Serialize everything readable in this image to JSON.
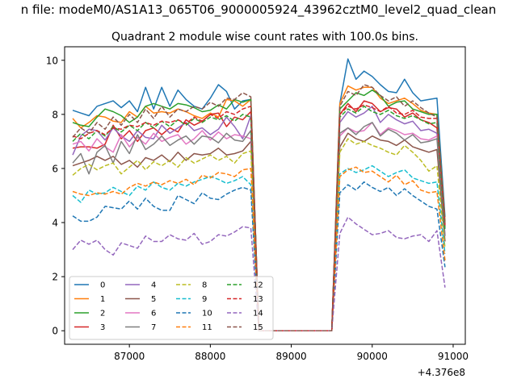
{
  "suptitle": "n file: modeM0/AS1A13_065T06_9000005924_43962cztM0_level2_quad_clean",
  "chart_data": {
    "type": "line",
    "title": "Quadrant 2 module wise count rates with 100.0s bins.",
    "xlabel": "",
    "ylabel": "",
    "x_offset_label": "+4.376e8",
    "xlim": [
      86200,
      91150
    ],
    "ylim": [
      -0.5,
      10.5
    ],
    "xticks": [
      87000,
      88000,
      89000,
      90000,
      91000
    ],
    "xtick_labels": [
      "87000",
      "88000",
      "89000",
      "90000",
      "91000"
    ],
    "yticks": [
      0,
      2,
      4,
      6,
      8,
      10
    ],
    "ytick_labels": [
      "0",
      "2",
      "4",
      "6",
      "8",
      "10"
    ],
    "grid": false,
    "legend": {
      "location": "lower left",
      "columns": 4
    },
    "x": [
      86300,
      86400,
      86500,
      86600,
      86700,
      86800,
      86900,
      87000,
      87100,
      87200,
      87300,
      87400,
      87500,
      87600,
      87700,
      87800,
      87900,
      88000,
      88100,
      88200,
      88300,
      88400,
      88500,
      88600,
      88700,
      88800,
      88900,
      89000,
      89100,
      89200,
      89300,
      89400,
      89500,
      89600,
      89700,
      89800,
      89900,
      90000,
      90100,
      90200,
      90300,
      90400,
      90500,
      90600,
      90700,
      90800,
      90900
    ],
    "series": [
      {
        "name": "0",
        "color": "#1f77b4",
        "dash": "solid",
        "values": [
          8.15,
          8.05,
          7.95,
          8.3,
          8.4,
          8.5,
          8.25,
          8.5,
          8.1,
          9.0,
          8.2,
          9.0,
          8.3,
          8.9,
          8.55,
          8.3,
          8.2,
          8.6,
          9.1,
          8.85,
          8.2,
          8.5,
          8.55,
          0,
          0,
          0,
          0,
          0,
          0,
          0,
          0,
          0,
          0,
          8.4,
          10.05,
          9.3,
          9.6,
          9.4,
          9.1,
          8.85,
          8.8,
          9.3,
          8.8,
          8.5,
          8.55,
          8.6,
          4.2
        ]
      },
      {
        "name": "1",
        "color": "#ff7f0e",
        "dash": "solid",
        "values": [
          7.85,
          7.5,
          7.7,
          7.95,
          7.9,
          7.75,
          7.7,
          8.1,
          7.9,
          8.3,
          8.05,
          8.1,
          8.05,
          8.2,
          8.1,
          7.95,
          7.85,
          8.05,
          7.9,
          8.55,
          8.5,
          8.3,
          8.55,
          0,
          0,
          0,
          0,
          0,
          0,
          0,
          0,
          0,
          0,
          8.4,
          9.05,
          8.9,
          9.0,
          9.0,
          8.6,
          8.4,
          8.5,
          8.6,
          8.4,
          8.15,
          8.05,
          8.0,
          4.05
        ]
      },
      {
        "name": "2",
        "color": "#2ca02c",
        "dash": "solid",
        "values": [
          7.7,
          7.6,
          7.55,
          7.9,
          8.2,
          8.1,
          7.95,
          7.7,
          7.9,
          8.3,
          8.4,
          8.3,
          8.2,
          8.4,
          8.35,
          8.25,
          8.1,
          8.15,
          8.35,
          8.2,
          8.55,
          8.45,
          8.55,
          0,
          0,
          0,
          0,
          0,
          0,
          0,
          0,
          0,
          0,
          8.2,
          8.5,
          8.8,
          8.7,
          8.9,
          8.7,
          8.3,
          8.45,
          8.5,
          8.2,
          8.1,
          8.0,
          8.0,
          3.95
        ]
      },
      {
        "name": "3",
        "color": "#d62728",
        "dash": "solid",
        "values": [
          6.75,
          6.8,
          6.8,
          6.75,
          6.9,
          7.6,
          7.1,
          7.4,
          7.0,
          7.4,
          7.5,
          7.25,
          7.5,
          7.35,
          7.8,
          7.6,
          7.75,
          8.0,
          8.05,
          7.55,
          7.9,
          7.8,
          8.1,
          0,
          0,
          0,
          0,
          0,
          0,
          0,
          0,
          0,
          0,
          8.0,
          8.4,
          8.1,
          8.5,
          8.4,
          8.1,
          8.25,
          8.2,
          7.9,
          8.05,
          7.8,
          7.7,
          7.5,
          3.85
        ]
      },
      {
        "name": "4",
        "color": "#9467bd",
        "dash": "solid",
        "values": [
          6.5,
          7.2,
          7.45,
          7.4,
          7.05,
          7.5,
          7.2,
          7.0,
          7.4,
          7.15,
          7.1,
          7.6,
          7.3,
          7.5,
          7.7,
          7.4,
          7.5,
          7.25,
          7.45,
          7.9,
          7.55,
          7.1,
          7.95,
          0,
          0,
          0,
          0,
          0,
          0,
          0,
          0,
          0,
          0,
          7.7,
          8.1,
          7.9,
          8.05,
          8.3,
          7.7,
          8.0,
          7.8,
          7.65,
          7.75,
          7.4,
          7.45,
          7.3,
          3.8
        ]
      },
      {
        "name": "5",
        "color": "#8c564b",
        "dash": "solid",
        "values": [
          6.1,
          6.2,
          6.3,
          6.45,
          6.3,
          6.45,
          6.15,
          6.3,
          6.05,
          6.4,
          6.3,
          6.5,
          6.25,
          6.6,
          6.3,
          6.55,
          6.5,
          6.55,
          6.75,
          6.5,
          6.55,
          6.65,
          7.0,
          0,
          0,
          0,
          0,
          0,
          0,
          0,
          0,
          0,
          0,
          6.8,
          7.3,
          7.1,
          7.0,
          7.2,
          7.05,
          7.0,
          6.85,
          7.05,
          6.8,
          6.7,
          6.6,
          6.7,
          3.3
        ]
      },
      {
        "name": "6",
        "color": "#e377c2",
        "dash": "solid",
        "values": [
          6.9,
          7.0,
          6.65,
          7.1,
          6.8,
          6.6,
          7.25,
          6.8,
          7.15,
          6.9,
          7.3,
          7.0,
          7.15,
          7.25,
          6.9,
          7.1,
          7.4,
          7.05,
          7.35,
          7.1,
          7.25,
          7.2,
          7.1,
          0,
          0,
          0,
          0,
          0,
          0,
          0,
          0,
          0,
          0,
          7.2,
          7.5,
          7.35,
          7.4,
          7.7,
          7.25,
          7.5,
          7.4,
          7.25,
          7.3,
          7.1,
          7.05,
          7.2,
          3.55
        ]
      },
      {
        "name": "7",
        "color": "#7f7f7f",
        "dash": "solid",
        "values": [
          6.2,
          6.55,
          5.8,
          6.6,
          6.85,
          6.2,
          7.0,
          6.55,
          7.25,
          6.7,
          6.9,
          7.2,
          6.85,
          7.05,
          7.2,
          6.9,
          7.2,
          7.15,
          6.95,
          7.3,
          7.05,
          7.0,
          7.4,
          0,
          0,
          0,
          0,
          0,
          0,
          0,
          0,
          0,
          0,
          7.3,
          7.5,
          7.25,
          7.55,
          7.7,
          7.2,
          7.45,
          7.3,
          7.05,
          7.25,
          6.95,
          7.0,
          7.1,
          3.5
        ]
      },
      {
        "name": "8",
        "color": "#bcbd22",
        "dash": "dashed",
        "values": [
          5.75,
          6.0,
          6.15,
          5.95,
          6.1,
          6.2,
          5.8,
          6.05,
          6.3,
          5.95,
          6.25,
          6.1,
          6.3,
          6.05,
          6.4,
          6.2,
          6.35,
          6.5,
          6.3,
          6.45,
          6.2,
          6.55,
          6.65,
          0,
          0,
          0,
          0,
          0,
          0,
          0,
          0,
          0,
          0,
          6.6,
          7.1,
          6.9,
          7.0,
          6.85,
          6.75,
          6.6,
          6.5,
          6.85,
          6.6,
          6.3,
          5.9,
          6.1,
          3.05
        ]
      },
      {
        "name": "9",
        "color": "#17becf",
        "dash": "dashed",
        "values": [
          5.0,
          4.75,
          5.2,
          5.05,
          5.1,
          5.3,
          5.15,
          5.0,
          5.35,
          5.2,
          5.5,
          5.3,
          5.2,
          5.45,
          5.35,
          5.5,
          5.6,
          5.7,
          5.6,
          5.45,
          5.55,
          5.7,
          5.4,
          0,
          0,
          0,
          0,
          0,
          0,
          0,
          0,
          0,
          0,
          5.8,
          6.0,
          5.85,
          5.95,
          6.1,
          5.9,
          5.7,
          5.85,
          5.95,
          5.65,
          5.55,
          5.45,
          5.5,
          2.85
        ]
      },
      {
        "name": "10",
        "color": "#1f77b4",
        "dash": "dashed",
        "values": [
          4.25,
          4.05,
          4.05,
          4.2,
          4.6,
          4.55,
          4.5,
          4.8,
          4.5,
          4.9,
          4.6,
          4.45,
          4.45,
          5.0,
          4.85,
          4.7,
          5.1,
          4.9,
          4.85,
          5.05,
          5.2,
          5.3,
          5.2,
          0,
          0,
          0,
          0,
          0,
          0,
          0,
          0,
          0,
          0,
          5.1,
          5.4,
          5.2,
          5.5,
          5.3,
          5.15,
          5.3,
          5.0,
          5.25,
          5.0,
          4.8,
          4.6,
          4.5,
          2.35
        ]
      },
      {
        "name": "11",
        "color": "#ff7f0e",
        "dash": "dashed",
        "values": [
          5.15,
          5.05,
          5.0,
          5.1,
          5.05,
          5.15,
          5.05,
          5.3,
          5.45,
          5.35,
          5.5,
          5.4,
          5.55,
          5.45,
          5.6,
          5.4,
          5.75,
          5.65,
          5.85,
          5.8,
          5.7,
          5.95,
          6.0,
          0,
          0,
          0,
          0,
          0,
          0,
          0,
          0,
          0,
          0,
          5.7,
          5.95,
          6.05,
          5.85,
          5.9,
          5.7,
          5.5,
          5.75,
          5.4,
          5.55,
          5.2,
          5.1,
          5.15,
          2.6
        ]
      },
      {
        "name": "12",
        "color": "#2ca02c",
        "dash": "dashed",
        "values": [
          7.0,
          7.3,
          7.1,
          7.4,
          7.2,
          7.55,
          7.35,
          7.6,
          7.4,
          7.7,
          7.5,
          7.75,
          7.55,
          7.8,
          7.6,
          7.85,
          7.7,
          7.9,
          7.8,
          7.95,
          7.75,
          8.0,
          7.9,
          0,
          0,
          0,
          0,
          0,
          0,
          0,
          0,
          0,
          0,
          7.9,
          8.2,
          8.05,
          8.3,
          8.1,
          8.0,
          8.15,
          7.95,
          7.85,
          7.95,
          7.8,
          7.65,
          7.7,
          3.7
        ]
      },
      {
        "name": "13",
        "color": "#d62728",
        "dash": "dashed",
        "values": [
          7.2,
          7.1,
          7.3,
          7.4,
          7.25,
          7.5,
          7.45,
          7.6,
          7.55,
          7.7,
          7.6,
          7.75,
          7.7,
          7.8,
          7.65,
          7.9,
          7.75,
          8.0,
          7.85,
          8.1,
          8.0,
          8.2,
          8.3,
          0,
          0,
          0,
          0,
          0,
          0,
          0,
          0,
          0,
          0,
          8.0,
          8.3,
          8.2,
          8.35,
          8.25,
          8.1,
          8.3,
          8.05,
          8.0,
          8.15,
          7.9,
          7.85,
          7.85,
          3.9
        ]
      },
      {
        "name": "14",
        "color": "#9467bd",
        "dash": "dashed",
        "values": [
          3.0,
          3.35,
          3.2,
          3.35,
          3.0,
          2.8,
          3.25,
          3.15,
          3.05,
          3.5,
          3.3,
          3.3,
          3.55,
          3.4,
          3.35,
          3.6,
          3.2,
          3.3,
          3.55,
          3.5,
          3.65,
          3.85,
          3.8,
          0,
          0,
          0,
          0,
          0,
          0,
          0,
          0,
          0,
          0,
          3.6,
          4.2,
          3.95,
          3.75,
          3.55,
          3.6,
          3.7,
          3.45,
          3.4,
          3.5,
          3.55,
          3.3,
          3.7,
          1.6
        ]
      },
      {
        "name": "15",
        "color": "#8c564b",
        "dash": "dashed",
        "values": [
          7.15,
          7.5,
          7.3,
          7.7,
          7.45,
          7.9,
          7.6,
          8.0,
          7.7,
          8.2,
          7.85,
          8.3,
          7.9,
          8.2,
          8.1,
          8.3,
          8.2,
          8.45,
          8.3,
          8.6,
          8.55,
          8.8,
          8.65,
          0,
          0,
          0,
          0,
          0,
          0,
          0,
          0,
          0,
          0,
          8.3,
          8.85,
          8.7,
          9.1,
          9.0,
          8.7,
          8.5,
          8.65,
          8.3,
          8.5,
          8.25,
          8.05,
          7.9,
          3.95
        ]
      }
    ]
  }
}
